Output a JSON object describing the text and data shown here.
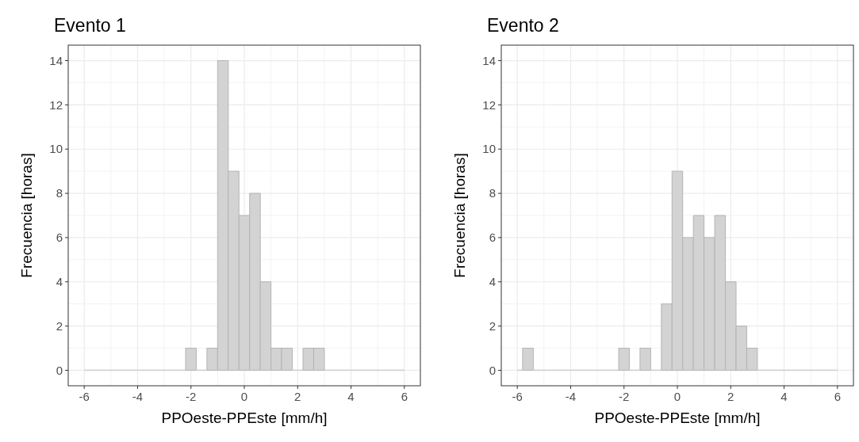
{
  "chart_data": [
    {
      "type": "histogram",
      "title": "Evento 1",
      "xlabel": "PPOeste-PPEste [mm/h]",
      "ylabel": "Frecuencia [horas]",
      "color": "#d3d3d3",
      "grid": true,
      "bins": [
        -6,
        -2.2,
        -1.8,
        -1.4,
        -1,
        -0.6,
        -0.2,
        0.2,
        0.6,
        1,
        1.4,
        1.8,
        2.2,
        2.6,
        3,
        6
      ],
      "values": [
        0,
        1,
        0,
        1,
        14,
        9,
        7,
        8,
        4,
        1,
        1,
        0,
        1,
        1,
        0
      ],
      "xlim": [
        -6.6,
        6.6
      ],
      "xticks": [
        -6,
        -4,
        -2,
        0,
        2,
        4,
        6
      ],
      "ylim": [
        -0.7,
        14.7
      ],
      "yticks": [
        0,
        2,
        4,
        6,
        8,
        10,
        12,
        14
      ]
    },
    {
      "type": "histogram",
      "title": "Evento 2",
      "xlabel": "PPOeste-PPEste [mm/h]",
      "ylabel": "Frecuencia [horas]",
      "color": "#d3d3d3",
      "grid": true,
      "bins": [
        -6,
        -5.8,
        -5.4,
        -2.2,
        -1.8,
        -1.4,
        -1,
        -0.6,
        -0.2,
        0.2,
        0.6,
        1,
        1.4,
        1.8,
        2.2,
        2.6,
        3,
        6
      ],
      "values": [
        0,
        1,
        0,
        1,
        0,
        1,
        0,
        3,
        9,
        6,
        7,
        6,
        7,
        4,
        2,
        1,
        0
      ],
      "xlim": [
        -6.6,
        6.6
      ],
      "xticks": [
        -6,
        -4,
        -2,
        0,
        2,
        4,
        6
      ],
      "ylim": [
        -0.7,
        14.7
      ],
      "yticks": [
        0,
        2,
        4,
        6,
        8,
        10,
        12,
        14
      ]
    }
  ]
}
